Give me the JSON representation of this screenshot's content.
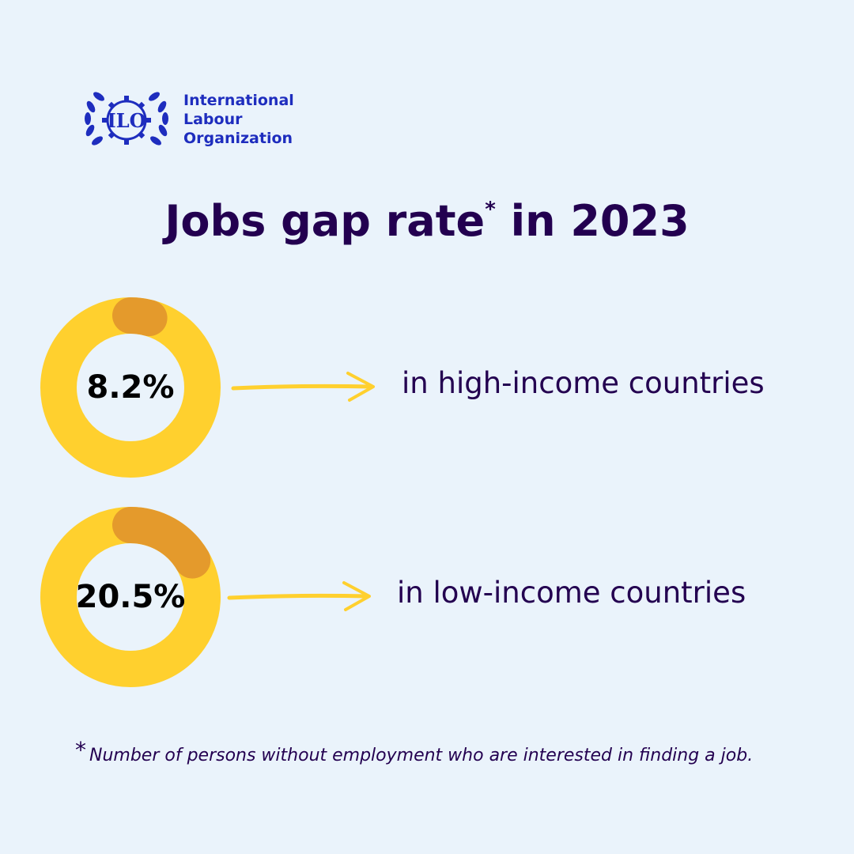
{
  "logo": {
    "mark_text": "ILO",
    "name_lines": [
      "International",
      "Labour",
      "Organization"
    ],
    "color": "#1e2dbe"
  },
  "title": {
    "text": "Jobs gap rate",
    "marker": "*",
    "suffix": "in 2023"
  },
  "chart_data": {
    "type": "pie",
    "title": "Jobs gap rate* in 2023",
    "categories": [
      "in high-income countries",
      "in low-income countries"
    ],
    "values": [
      8.2,
      20.5
    ],
    "value_labels": [
      "8.2%",
      "20.5%"
    ],
    "unit": "%",
    "colors": {
      "ring": "#ffd02e",
      "highlight": "#e49a2c"
    }
  },
  "footnote": {
    "marker": "*",
    "text": "Number of persons without employment who are interested in finding a job."
  }
}
